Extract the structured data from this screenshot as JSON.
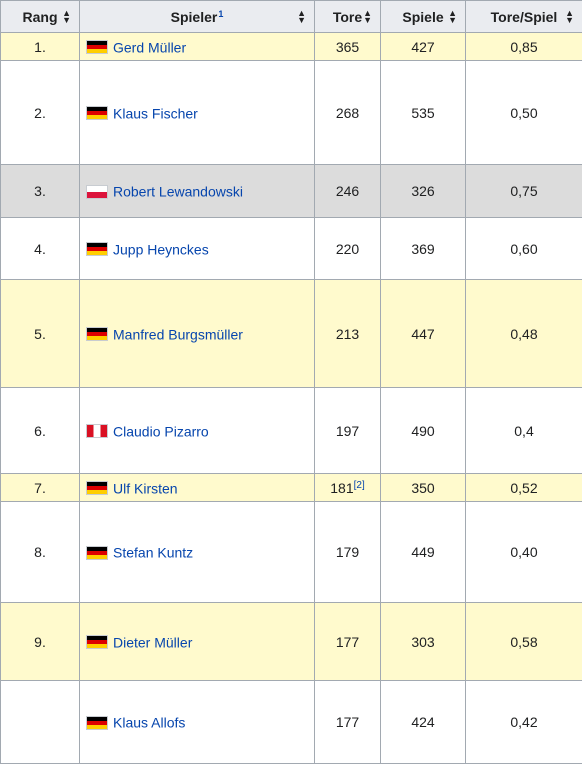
{
  "headers": {
    "rank": "Rang",
    "player": "Spieler",
    "player_note": "1",
    "goals": "Tore",
    "games": "Spiele",
    "ratio": "Tore/Spiel"
  },
  "rows": [
    {
      "rank": "1.",
      "flag": "de",
      "name": "Gerd Müller",
      "goals": "365",
      "games": "427",
      "ratio": "0,85"
    },
    {
      "rank": "2.",
      "flag": "de",
      "name": "Klaus Fischer",
      "goals": "268",
      "games": "535",
      "ratio": "0,50"
    },
    {
      "rank": "3.",
      "flag": "pl",
      "name": "Robert Lewandowski",
      "goals": "246",
      "games": "326",
      "ratio": "0,75"
    },
    {
      "rank": "4.",
      "flag": "de",
      "name": "Jupp Heynckes",
      "goals": "220",
      "games": "369",
      "ratio": "0,60"
    },
    {
      "rank": "5.",
      "flag": "de",
      "name": "Manfred Burgsmüller",
      "goals": "213",
      "games": "447",
      "ratio": "0,48"
    },
    {
      "rank": "6.",
      "flag": "pe",
      "name": "Claudio Pizarro",
      "goals": "197",
      "games": "490",
      "ratio": "0,4"
    },
    {
      "rank": "7.",
      "flag": "de",
      "name": "Ulf Kirsten",
      "goals": "181",
      "goals_ref": "[2]",
      "games": "350",
      "ratio": "0,52"
    },
    {
      "rank": "8.",
      "flag": "de",
      "name": "Stefan Kuntz",
      "goals": "179",
      "games": "449",
      "ratio": "0,40"
    },
    {
      "rank": "9.",
      "flag": "de",
      "name": "Dieter Müller",
      "goals": "177",
      "games": "303",
      "ratio": "0,58"
    },
    {
      "rank": "",
      "flag": "de",
      "name": "Klaus Allofs",
      "goals": "177",
      "games": "424",
      "ratio": "0,42"
    }
  ],
  "colors": {
    "highlight_yellow": "#fffacd",
    "highlight_grey": "#dcdcdc",
    "header_bg": "#eaecf0",
    "link": "#0645ad"
  }
}
